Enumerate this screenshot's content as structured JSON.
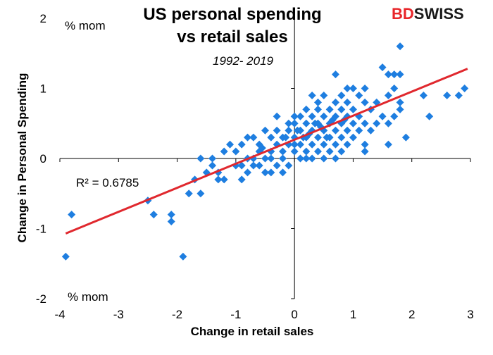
{
  "logo": {
    "part1": "BD",
    "part2": "SWISS",
    "color": "#e8262a"
  },
  "chart_data": {
    "type": "scatter",
    "title": [
      "US personal spending",
      "vs retail sales"
    ],
    "subtitle": "1992- 2019",
    "xlabel": "Change in retail sales",
    "ylabel": "Change in Personal Spending",
    "unit_top": "% mom",
    "unit_bottom": "% mom",
    "annotation": "R² = 0.6785",
    "xlim": [
      -4,
      3
    ],
    "ylim": [
      -2,
      2
    ],
    "xticks": [
      "-4",
      "-3",
      "-2",
      "-1",
      "0",
      "1",
      "2",
      "3"
    ],
    "yticks": [
      "2",
      "1",
      "0",
      "-1",
      "-2"
    ],
    "grid": false,
    "marker_color": "#1e7ee0",
    "trend_color": "#e0282e",
    "trendline": {
      "x": [
        -3.9,
        2.95
      ],
      "y": [
        -1.07,
        1.28
      ]
    },
    "points": [
      [
        -3.9,
        -1.4
      ],
      [
        -3.8,
        -0.8
      ],
      [
        -2.5,
        -0.6
      ],
      [
        -2.4,
        -0.8
      ],
      [
        -2.1,
        -0.8
      ],
      [
        -2.1,
        -0.9
      ],
      [
        -1.9,
        -1.4
      ],
      [
        -1.8,
        -0.5
      ],
      [
        -1.6,
        -0.5
      ],
      [
        -1.7,
        -0.3
      ],
      [
        -1.6,
        0.0
      ],
      [
        -1.5,
        -0.2
      ],
      [
        -1.4,
        -0.1
      ],
      [
        -1.4,
        0.0
      ],
      [
        -1.3,
        -0.2
      ],
      [
        -1.3,
        -0.3
      ],
      [
        -1.2,
        -0.3
      ],
      [
        -1.2,
        0.1
      ],
      [
        -1.1,
        0.2
      ],
      [
        -1.0,
        -0.1
      ],
      [
        -1.0,
        0.1
      ],
      [
        -0.9,
        -0.1
      ],
      [
        -0.9,
        0.2
      ],
      [
        -0.9,
        -0.3
      ],
      [
        -0.8,
        0.3
      ],
      [
        -0.8,
        0.0
      ],
      [
        -0.8,
        -0.2
      ],
      [
        -0.7,
        0.3
      ],
      [
        -0.7,
        0.0
      ],
      [
        -0.7,
        -0.1
      ],
      [
        -0.6,
        0.2
      ],
      [
        -0.6,
        -0.1
      ],
      [
        -0.6,
        0.1
      ],
      [
        -0.5,
        0.0
      ],
      [
        -0.5,
        -0.2
      ],
      [
        -0.5,
        0.4
      ],
      [
        -0.4,
        0.3
      ],
      [
        -0.4,
        0.1
      ],
      [
        -0.4,
        -0.2
      ],
      [
        -0.4,
        0.0
      ],
      [
        -0.3,
        0.2
      ],
      [
        -0.3,
        0.6
      ],
      [
        -0.3,
        -0.1
      ],
      [
        -0.3,
        0.4
      ],
      [
        -0.2,
        0.3
      ],
      [
        -0.2,
        0.1
      ],
      [
        -0.2,
        0.0
      ],
      [
        -0.2,
        -0.2
      ],
      [
        -0.1,
        0.5
      ],
      [
        -0.1,
        0.2
      ],
      [
        -0.1,
        -0.1
      ],
      [
        -0.1,
        0.4
      ],
      [
        0.0,
        0.6
      ],
      [
        0.0,
        0.3
      ],
      [
        0.0,
        0.1
      ],
      [
        0.0,
        0.5
      ],
      [
        0.0,
        0.2
      ],
      [
        0.1,
        0.4
      ],
      [
        0.1,
        0.2
      ],
      [
        0.1,
        0.6
      ],
      [
        0.1,
        0.0
      ],
      [
        0.2,
        0.5
      ],
      [
        0.2,
        0.3
      ],
      [
        0.2,
        0.1
      ],
      [
        0.2,
        0.7
      ],
      [
        0.2,
        0.0
      ],
      [
        0.3,
        0.9
      ],
      [
        0.3,
        0.4
      ],
      [
        0.3,
        0.6
      ],
      [
        0.3,
        0.2
      ],
      [
        0.3,
        0.0
      ],
      [
        0.4,
        0.8
      ],
      [
        0.4,
        0.5
      ],
      [
        0.4,
        0.3
      ],
      [
        0.4,
        0.1
      ],
      [
        0.4,
        0.7
      ],
      [
        0.5,
        0.9
      ],
      [
        0.5,
        0.6
      ],
      [
        0.5,
        0.4
      ],
      [
        0.5,
        0.2
      ],
      [
        0.5,
        0.0
      ],
      [
        0.6,
        0.7
      ],
      [
        0.6,
        0.5
      ],
      [
        0.6,
        0.3
      ],
      [
        0.6,
        0.1
      ],
      [
        0.7,
        1.2
      ],
      [
        0.7,
        0.8
      ],
      [
        0.7,
        0.6
      ],
      [
        0.7,
        0.4
      ],
      [
        0.7,
        0.2
      ],
      [
        0.7,
        0.0
      ],
      [
        0.8,
        0.9
      ],
      [
        0.8,
        0.7
      ],
      [
        0.8,
        0.5
      ],
      [
        0.8,
        0.3
      ],
      [
        0.8,
        0.1
      ],
      [
        0.9,
        1.0
      ],
      [
        0.9,
        0.8
      ],
      [
        0.9,
        0.6
      ],
      [
        0.9,
        0.4
      ],
      [
        0.9,
        0.2
      ],
      [
        1.0,
        1.0
      ],
      [
        1.0,
        0.7
      ],
      [
        1.0,
        0.5
      ],
      [
        1.0,
        0.3
      ],
      [
        1.1,
        0.9
      ],
      [
        1.1,
        0.6
      ],
      [
        1.1,
        0.4
      ],
      [
        1.2,
        1.0
      ],
      [
        1.2,
        0.8
      ],
      [
        1.2,
        0.5
      ],
      [
        1.2,
        0.2
      ],
      [
        1.2,
        0.1
      ],
      [
        1.3,
        0.7
      ],
      [
        1.3,
        0.4
      ],
      [
        1.4,
        0.8
      ],
      [
        1.4,
        0.5
      ],
      [
        1.5,
        1.3
      ],
      [
        1.5,
        0.6
      ],
      [
        1.6,
        1.2
      ],
      [
        1.6,
        0.9
      ],
      [
        1.6,
        0.5
      ],
      [
        1.6,
        0.2
      ],
      [
        1.7,
        1.2
      ],
      [
        1.7,
        1.0
      ],
      [
        1.7,
        0.6
      ],
      [
        1.8,
        1.6
      ],
      [
        1.8,
        1.2
      ],
      [
        1.8,
        0.8
      ],
      [
        1.8,
        0.7
      ],
      [
        1.9,
        0.3
      ],
      [
        2.2,
        0.9
      ],
      [
        2.3,
        0.6
      ],
      [
        2.6,
        0.9
      ],
      [
        2.8,
        0.9
      ],
      [
        2.9,
        1.0
      ],
      [
        0.25,
        0.35
      ],
      [
        0.45,
        0.45
      ],
      [
        0.65,
        0.55
      ],
      [
        0.85,
        0.55
      ],
      [
        -0.15,
        0.3
      ],
      [
        0.05,
        0.4
      ],
      [
        0.15,
        0.3
      ],
      [
        0.35,
        0.5
      ],
      [
        0.55,
        0.3
      ],
      [
        -0.55,
        0.15
      ]
    ]
  }
}
